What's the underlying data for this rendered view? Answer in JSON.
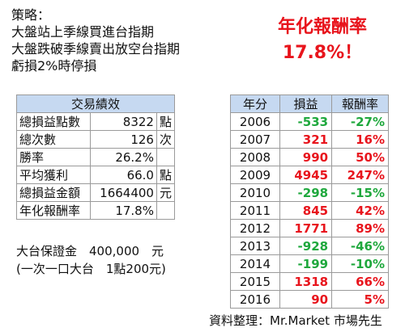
{
  "strategy": {
    "heading": "策略：",
    "lines": [
      "大盤站上季線買進台指期",
      "大盤跌破季線賣出放空台指期",
      "虧損2%時停損"
    ]
  },
  "headline": {
    "label": "年化報酬率",
    "value": "17.8%！"
  },
  "stats": {
    "title": "交易績效",
    "rows": [
      {
        "label": "總損益點數",
        "value": "8322",
        "unit": "點"
      },
      {
        "label": "總次數",
        "value": "126",
        "unit": "次"
      },
      {
        "label": "勝率",
        "value": "26.2%",
        "unit": ""
      },
      {
        "label": "平均獲利",
        "value": "66.0",
        "unit": "點"
      },
      {
        "label": "總損益金額",
        "value": "1664400",
        "unit": "元"
      },
      {
        "label": "年化報酬率",
        "value": "17.8%",
        "unit": ""
      }
    ]
  },
  "margin": {
    "line1": "大台保證金　400,000　元",
    "line2": "(一次一口大台　1點200元)"
  },
  "yearly": {
    "headers": [
      "年分",
      "損益",
      "報酬率"
    ],
    "rows": [
      {
        "year": "2006",
        "pnl": "-533",
        "ret": "-27%"
      },
      {
        "year": "2007",
        "pnl": "321",
        "ret": "16%"
      },
      {
        "year": "2008",
        "pnl": "990",
        "ret": "50%"
      },
      {
        "year": "2009",
        "pnl": "4945",
        "ret": "247%"
      },
      {
        "year": "2010",
        "pnl": "-298",
        "ret": "-15%"
      },
      {
        "year": "2011",
        "pnl": "845",
        "ret": "42%"
      },
      {
        "year": "2012",
        "pnl": "1771",
        "ret": "89%"
      },
      {
        "year": "2013",
        "pnl": "-928",
        "ret": "-46%"
      },
      {
        "year": "2014",
        "pnl": "-199",
        "ret": "-10%"
      },
      {
        "year": "2015",
        "pnl": "1318",
        "ret": "66%"
      },
      {
        "year": "2016",
        "pnl": "90",
        "ret": "5%"
      }
    ]
  },
  "colors": {
    "positive": "#e8141c",
    "negative": "#1fa83d",
    "header_bg": "#c6d9f1"
  },
  "source": "資料整理：Mr.Market 市場先生"
}
